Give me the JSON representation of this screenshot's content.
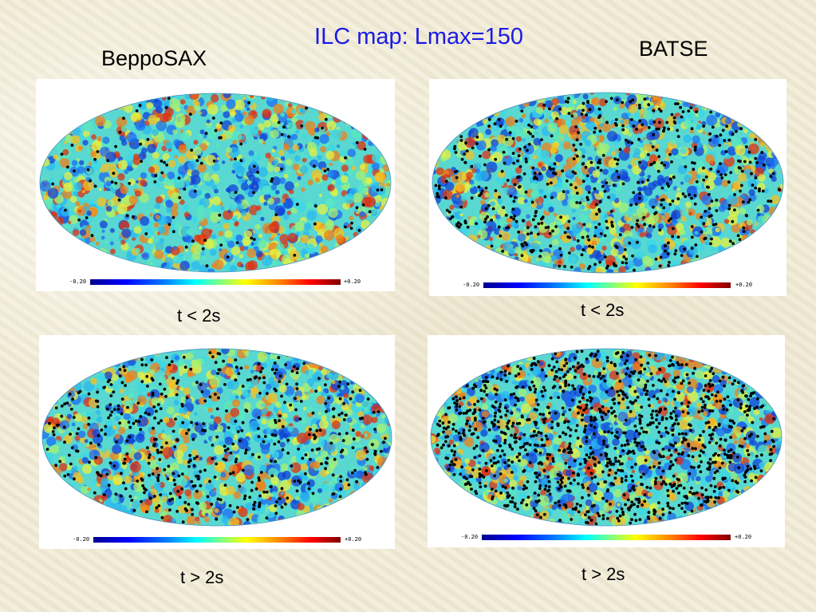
{
  "title": "ILC map: Lmax=150",
  "columns": [
    {
      "label": "BeppoSAX"
    },
    {
      "label": "BATSE"
    }
  ],
  "panels": [
    {
      "column": "BeppoSAX",
      "time_cut": "t < 2s",
      "dot_count": 110,
      "seed": 11
    },
    {
      "column": "BATSE",
      "time_cut": "t < 2s",
      "dot_count": 520,
      "seed": 23
    },
    {
      "column": "BeppoSAX",
      "time_cut": "t > 2s",
      "dot_count": 480,
      "seed": 37
    },
    {
      "column": "BATSE",
      "time_cut": "t > 2s",
      "dot_count": 1150,
      "seed": 53
    }
  ],
  "colorbar": {
    "min_label": "-0.20",
    "max_label": "+0.20"
  },
  "palette": {
    "title": "#1a1ae6",
    "dots": "#000000",
    "background": "#f1ebd6"
  }
}
